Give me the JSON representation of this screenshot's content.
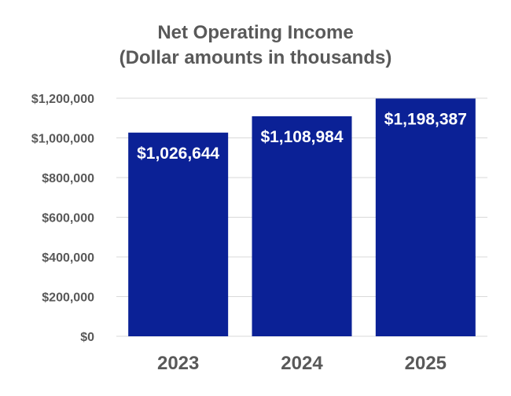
{
  "chart_data": {
    "type": "bar",
    "title": "Net Operating Income",
    "subtitle": "(Dollar amounts in thousands)",
    "categories": [
      "2023",
      "2024",
      "2025"
    ],
    "values": [
      1026644,
      1108984,
      1198387
    ],
    "data_labels": [
      "$1,026,644",
      "$1,108,984",
      "$1,198,387"
    ],
    "ylim": [
      0,
      1200000
    ],
    "yticks": [
      "$0",
      "$200,000",
      "$400,000",
      "$600,000",
      "$800,000",
      "$1,000,000",
      "$1,200,000"
    ],
    "grid": true,
    "legend": "none",
    "bar_color": "#0b2196"
  }
}
